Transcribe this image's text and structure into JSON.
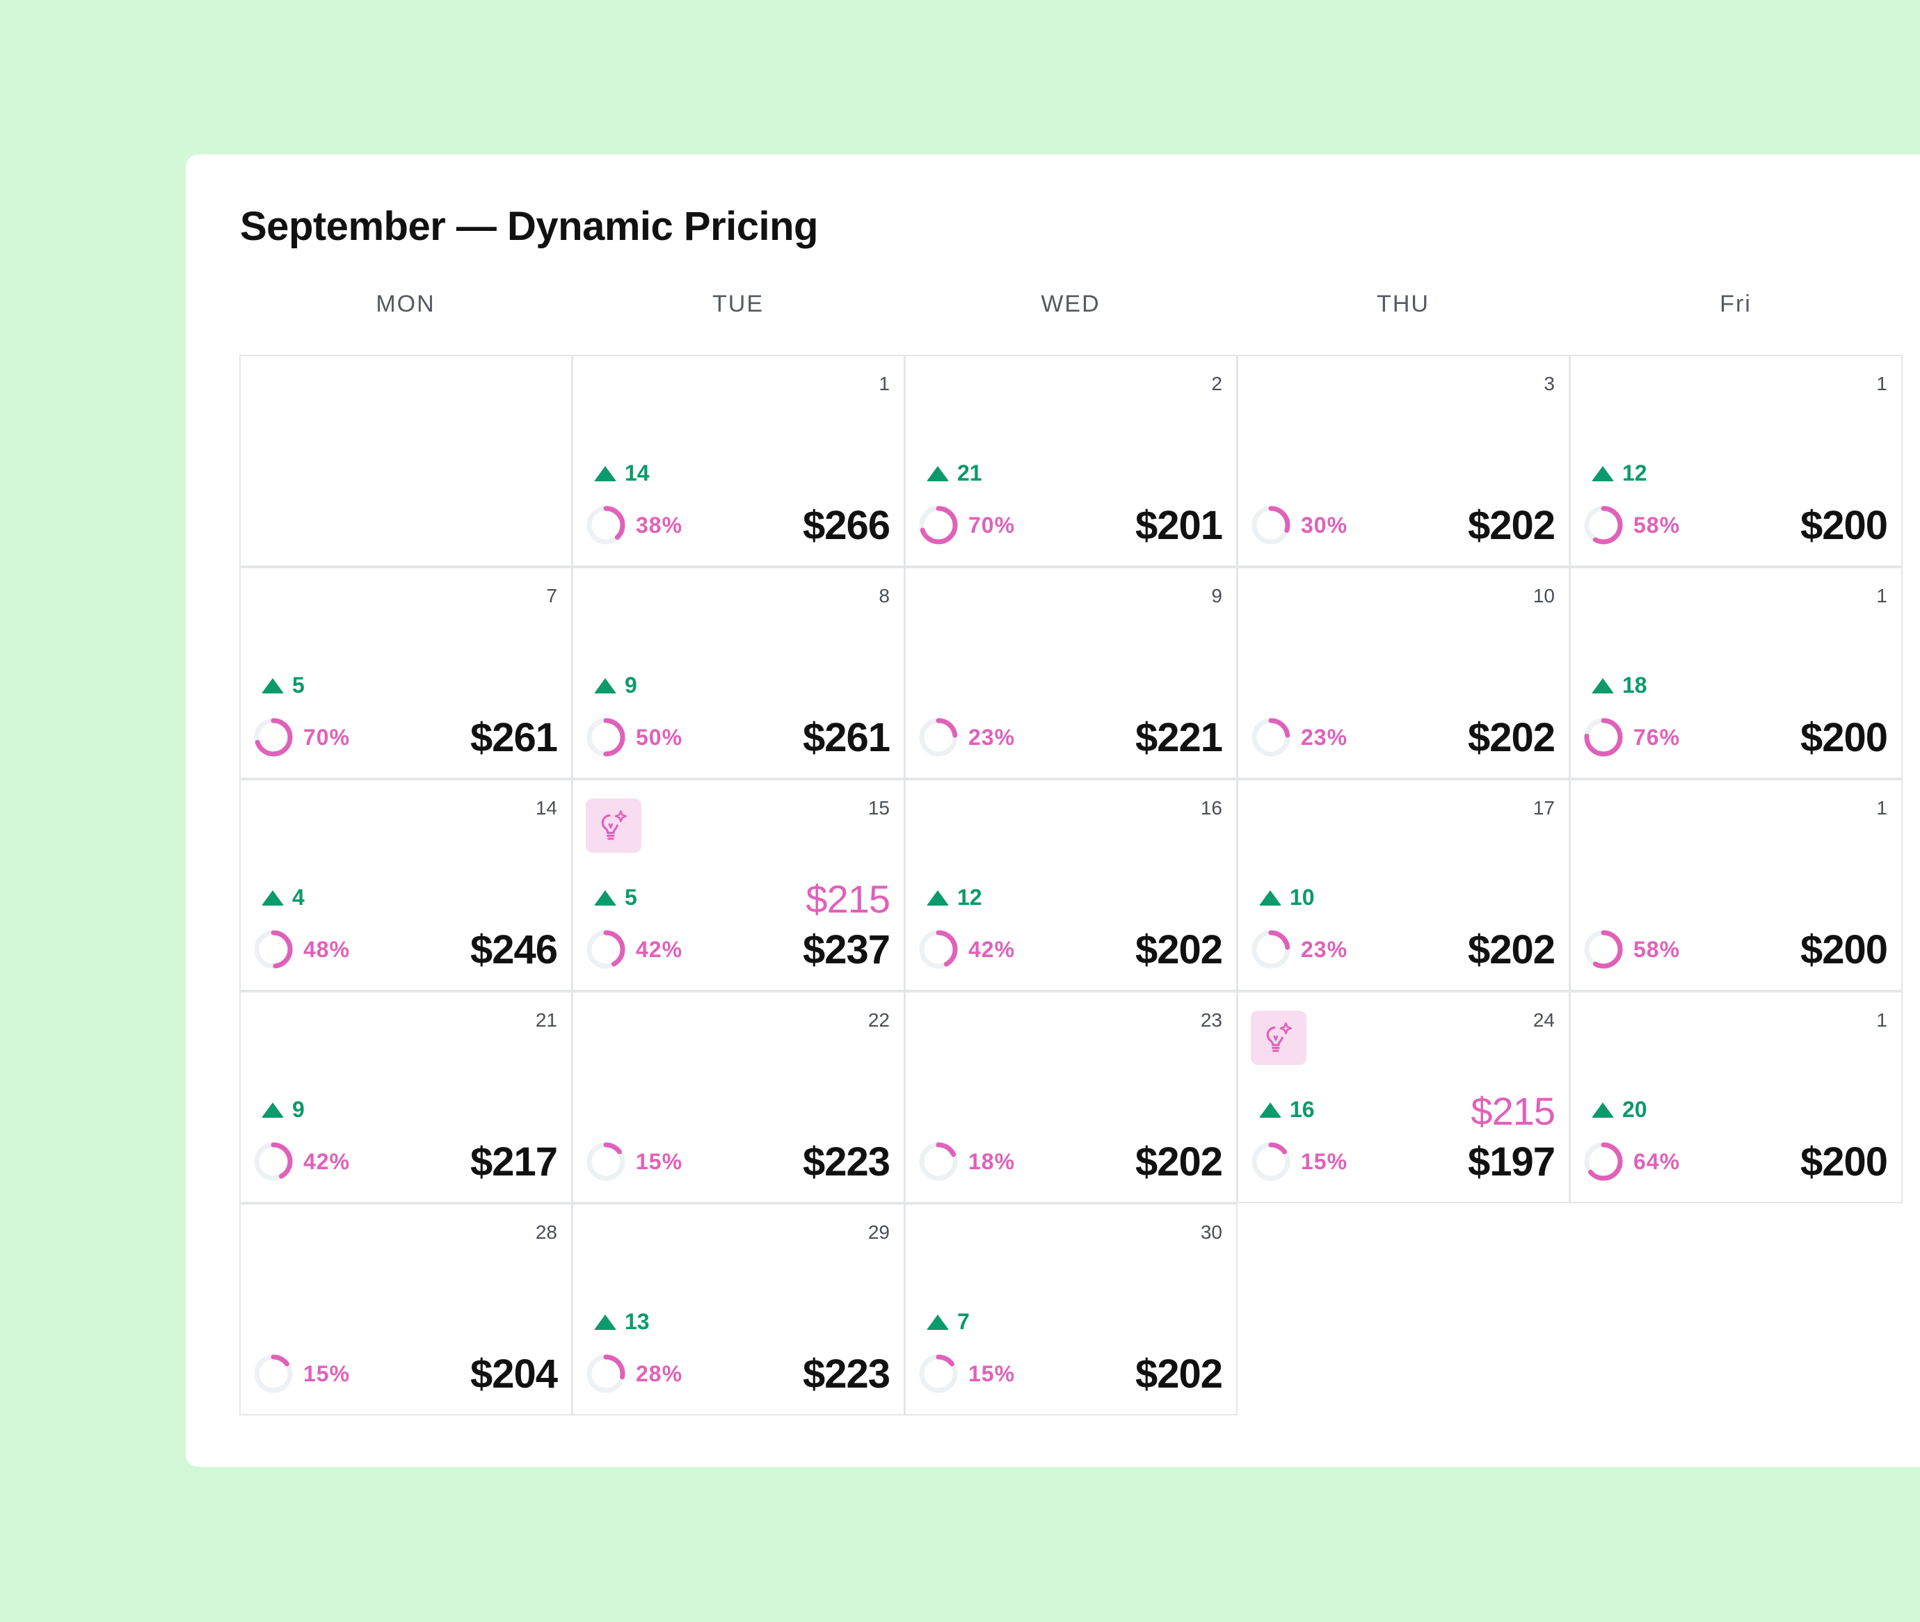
{
  "title": "September — Dynamic Pricing",
  "weekdays": [
    "MON",
    "TUE",
    "WED",
    "THU",
    "Fri"
  ],
  "colors": {
    "background": "#d2f8d7",
    "trend_green": "#0b9a6b",
    "occupancy_pink": "#e061b9",
    "ring_track": "#edf1f4",
    "suggestion_bg": "#f8dcf0"
  },
  "icons": {
    "trend": "triangle-up-icon",
    "suggestion": "lightbulb-sparkle-icon"
  },
  "weeks": [
    [
      null,
      {
        "day": "1",
        "trend": "14",
        "occupancy": 38,
        "occupancy_label": "38%",
        "price": "$266"
      },
      {
        "day": "2",
        "trend": "21",
        "occupancy": 70,
        "occupancy_label": "70%",
        "price": "$201"
      },
      {
        "day": "3",
        "occupancy": 30,
        "occupancy_label": "30%",
        "price": "$202"
      },
      {
        "day": "1",
        "trend": "12",
        "occupancy": 58,
        "occupancy_label": "58%",
        "price": "$200"
      }
    ],
    [
      {
        "day": "7",
        "trend": "5",
        "occupancy": 70,
        "occupancy_label": "70%",
        "price": "$261"
      },
      {
        "day": "8",
        "trend": "9",
        "occupancy": 50,
        "occupancy_label": "50%",
        "price": "$261"
      },
      {
        "day": "9",
        "occupancy": 23,
        "occupancy_label": "23%",
        "price": "$221"
      },
      {
        "day": "10",
        "occupancy": 23,
        "occupancy_label": "23%",
        "price": "$202"
      },
      {
        "day": "1",
        "trend": "18",
        "occupancy": 76,
        "occupancy_label": "76%",
        "price": "$200"
      }
    ],
    [
      {
        "day": "14",
        "trend": "4",
        "occupancy": 48,
        "occupancy_label": "48%",
        "price": "$246"
      },
      {
        "day": "15",
        "trend": "5",
        "occupancy": 42,
        "occupancy_label": "42%",
        "price": "$237",
        "suggested": "$215",
        "suggestion": true
      },
      {
        "day": "16",
        "trend": "12",
        "occupancy": 42,
        "occupancy_label": "42%",
        "price": "$202"
      },
      {
        "day": "17",
        "trend": "10",
        "occupancy": 23,
        "occupancy_label": "23%",
        "price": "$202"
      },
      {
        "day": "1",
        "occupancy": 58,
        "occupancy_label": "58%",
        "price": "$200"
      }
    ],
    [
      {
        "day": "21",
        "trend": "9",
        "occupancy": 42,
        "occupancy_label": "42%",
        "price": "$217"
      },
      {
        "day": "22",
        "occupancy": 15,
        "occupancy_label": "15%",
        "price": "$223"
      },
      {
        "day": "23",
        "occupancy": 18,
        "occupancy_label": "18%",
        "price": "$202"
      },
      {
        "day": "24",
        "trend": "16",
        "occupancy": 15,
        "occupancy_label": "15%",
        "price": "$197",
        "suggested": "$215",
        "suggestion": true
      },
      {
        "day": "1",
        "trend": "20",
        "occupancy": 64,
        "occupancy_label": "64%",
        "price": "$200"
      }
    ],
    [
      {
        "day": "28",
        "occupancy": 15,
        "occupancy_label": "15%",
        "price": "$204"
      },
      {
        "day": "29",
        "trend": "13",
        "occupancy": 28,
        "occupancy_label": "28%",
        "price": "$223"
      },
      {
        "day": "30",
        "trend": "7",
        "occupancy": 15,
        "occupancy_label": "15%",
        "price": "$202"
      }
    ]
  ]
}
